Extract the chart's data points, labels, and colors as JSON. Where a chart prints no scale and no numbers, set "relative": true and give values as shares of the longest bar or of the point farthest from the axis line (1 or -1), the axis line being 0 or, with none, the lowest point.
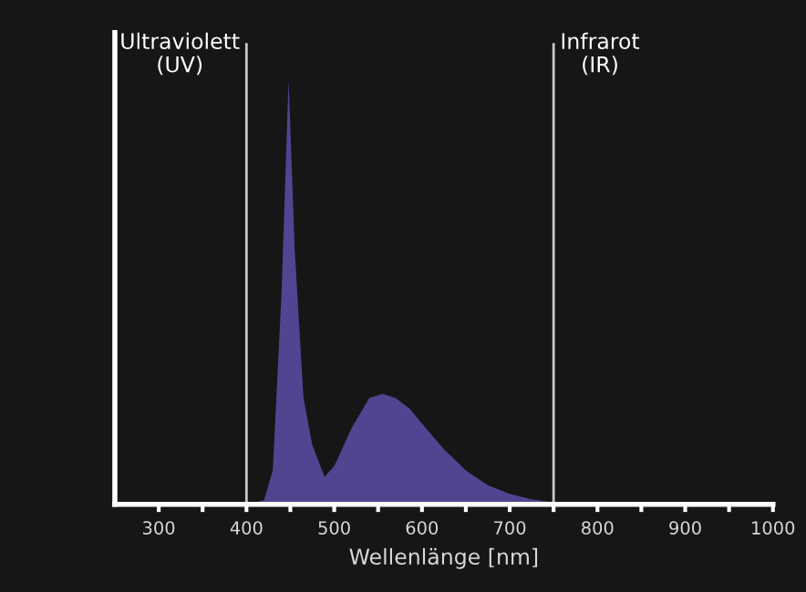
{
  "chart_data": {
    "type": "area",
    "relative": true,
    "xlabel": "Wellenlänge [nm]",
    "xlim": [
      250,
      1000
    ],
    "xticks": [
      300,
      {
        "value": 350,
        "label": null
      },
      400,
      {
        "value": 450,
        "label": null
      },
      500,
      {
        "value": 550,
        "label": null
      },
      600,
      {
        "value": 650,
        "label": null
      },
      700,
      {
        "value": 750,
        "label": null
      },
      800,
      {
        "value": 850,
        "label": null
      },
      900,
      {
        "value": 950,
        "label": null
      },
      1000
    ],
    "x": [
      250,
      400,
      420,
      430,
      440,
      448,
      455,
      465,
      475,
      489,
      500,
      520,
      540,
      555,
      570,
      586,
      600,
      625,
      650,
      675,
      700,
      725,
      750,
      800,
      1000
    ],
    "values": [
      0,
      0,
      0.01,
      0.08,
      0.5,
      1.0,
      0.6,
      0.25,
      0.14,
      0.065,
      0.09,
      0.18,
      0.25,
      0.26,
      0.25,
      0.225,
      0.19,
      0.13,
      0.08,
      0.045,
      0.025,
      0.012,
      0.005,
      0,
      0
    ],
    "color": "#4f4590",
    "ref_lines": [
      {
        "axis": "x",
        "value": 400,
        "label": "Ultraviolett\n(UV)",
        "color": "#c8c8c8"
      },
      {
        "axis": "x",
        "value": 750,
        "label": "Infrarot\n(IR)",
        "color": "#c8c8c8"
      }
    ]
  }
}
